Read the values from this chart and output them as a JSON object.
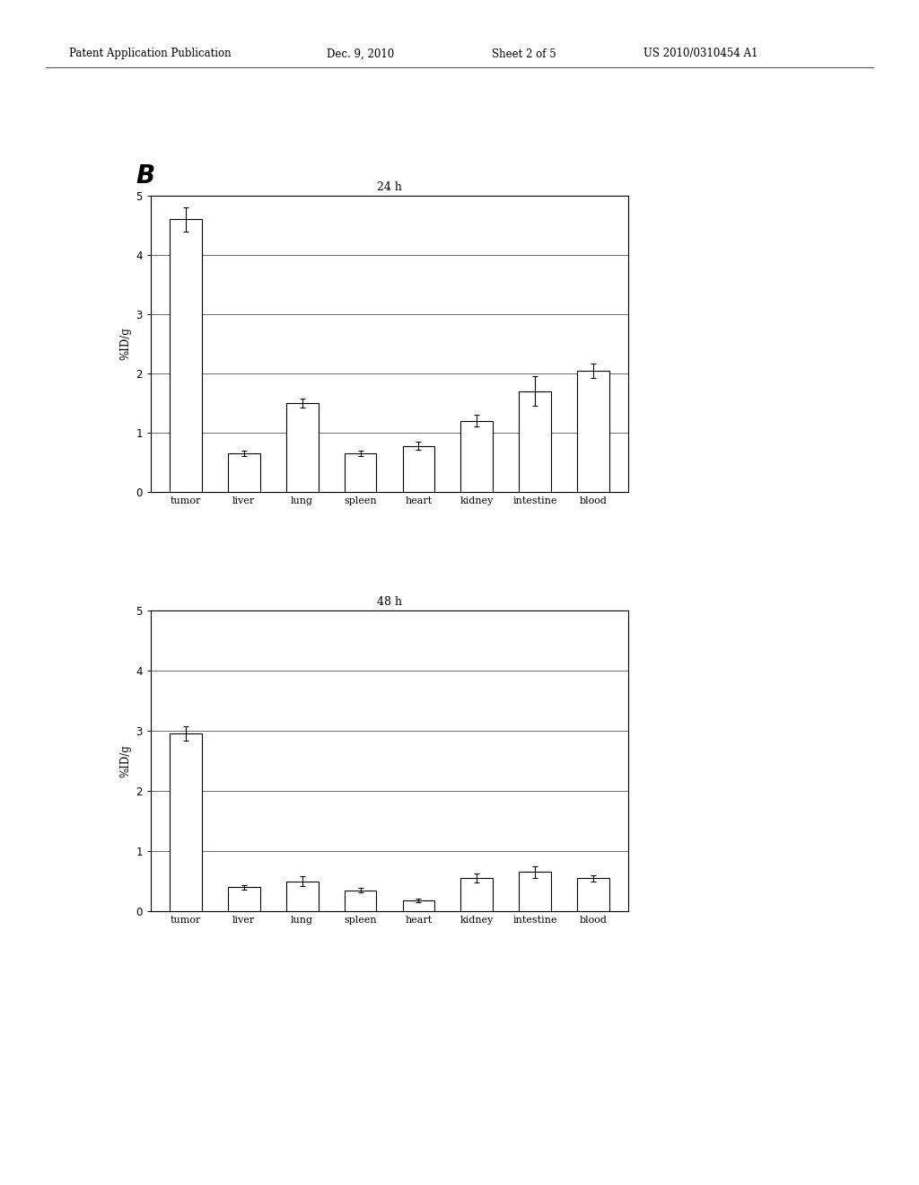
{
  "chart24h": {
    "title": "24 h",
    "categories": [
      "tumor",
      "liver",
      "lung",
      "spleen",
      "heart",
      "kidney",
      "intestine",
      "blood"
    ],
    "values": [
      4.6,
      0.65,
      1.5,
      0.65,
      0.78,
      1.2,
      1.7,
      2.05
    ],
    "errors": [
      0.2,
      0.05,
      0.07,
      0.05,
      0.07,
      0.1,
      0.25,
      0.12
    ],
    "ylim": [
      0,
      5
    ],
    "yticks": [
      0,
      1,
      2,
      3,
      4,
      5
    ],
    "ylabel": "%ID/g"
  },
  "chart48h": {
    "title": "48 h",
    "categories": [
      "tumor",
      "liver",
      "lung",
      "spleen",
      "heart",
      "kidney",
      "intestine",
      "blood"
    ],
    "values": [
      2.95,
      0.4,
      0.5,
      0.35,
      0.18,
      0.55,
      0.65,
      0.55
    ],
    "errors": [
      0.12,
      0.04,
      0.08,
      0.04,
      0.03,
      0.07,
      0.1,
      0.05
    ],
    "ylim": [
      0,
      5
    ],
    "yticks": [
      0,
      1,
      2,
      3,
      4,
      5
    ],
    "ylabel": "%ID/g"
  },
  "label_B": "B",
  "header_text": "Patent Application Publication",
  "header_date": "Dec. 9, 2010",
  "header_sheet": "Sheet 2 of 5",
  "header_patent": "US 2010/0310454 A1",
  "bar_color": "#ffffff",
  "bar_edgecolor": "#000000",
  "background_color": "#ffffff",
  "fig_width": 10.24,
  "fig_height": 13.2,
  "dpi": 100
}
